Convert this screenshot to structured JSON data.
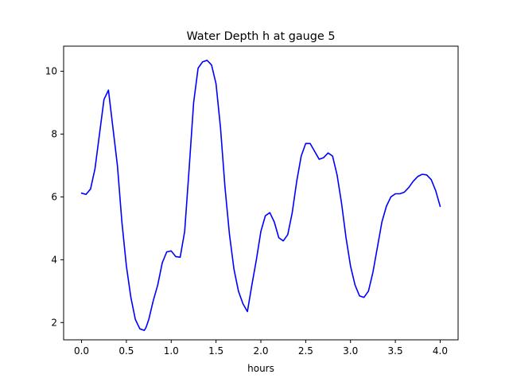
{
  "chart_data": {
    "type": "line",
    "title": "Water Depth h at gauge 5",
    "xlabel": "hours",
    "ylabel": "",
    "xlim": [
      -0.2,
      4.2
    ],
    "ylim": [
      1.45,
      10.8
    ],
    "xticks": [
      "0.0",
      "0.5",
      "1.0",
      "1.5",
      "2.0",
      "2.5",
      "3.0",
      "3.5",
      "4.0"
    ],
    "yticks": [
      "2",
      "4",
      "6",
      "8",
      "10"
    ],
    "grid": false,
    "series": [
      {
        "color": "#0000ff",
        "x": [
          0.0,
          0.05,
          0.1,
          0.15,
          0.2,
          0.25,
          0.3,
          0.35,
          0.4,
          0.45,
          0.5,
          0.55,
          0.6,
          0.65,
          0.7,
          0.72,
          0.75,
          0.8,
          0.85,
          0.9,
          0.95,
          1.0,
          1.05,
          1.1,
          1.15,
          1.2,
          1.25,
          1.3,
          1.35,
          1.4,
          1.45,
          1.5,
          1.55,
          1.6,
          1.65,
          1.7,
          1.75,
          1.8,
          1.85,
          1.9,
          1.95,
          2.0,
          2.05,
          2.1,
          2.15,
          2.2,
          2.25,
          2.3,
          2.35,
          2.4,
          2.45,
          2.5,
          2.55,
          2.6,
          2.65,
          2.7,
          2.75,
          2.8,
          2.85,
          2.9,
          2.95,
          3.0,
          3.05,
          3.1,
          3.15,
          3.2,
          3.25,
          3.3,
          3.35,
          3.4,
          3.45,
          3.5,
          3.55,
          3.6,
          3.65,
          3.7,
          3.75,
          3.8,
          3.85,
          3.9,
          3.95,
          4.0
        ],
        "y": [
          6.12,
          6.08,
          6.25,
          6.9,
          8.0,
          9.1,
          9.4,
          8.2,
          7.0,
          5.2,
          3.8,
          2.8,
          2.1,
          1.8,
          1.75,
          1.85,
          2.1,
          2.7,
          3.2,
          3.9,
          4.25,
          4.28,
          4.1,
          4.08,
          4.9,
          6.9,
          9.0,
          10.1,
          10.3,
          10.35,
          10.2,
          9.6,
          8.2,
          6.3,
          4.8,
          3.7,
          3.0,
          2.6,
          2.35,
          3.2,
          4.0,
          4.9,
          5.4,
          5.5,
          5.2,
          4.7,
          4.6,
          4.8,
          5.5,
          6.5,
          7.3,
          7.7,
          7.7,
          7.45,
          7.2,
          7.25,
          7.4,
          7.3,
          6.7,
          5.8,
          4.7,
          3.8,
          3.2,
          2.85,
          2.8,
          3.0,
          3.6,
          4.4,
          5.2,
          5.7,
          6.0,
          6.1,
          6.1,
          6.15,
          6.3,
          6.5,
          6.65,
          6.72,
          6.7,
          6.55,
          6.2,
          5.7
        ]
      }
    ]
  }
}
